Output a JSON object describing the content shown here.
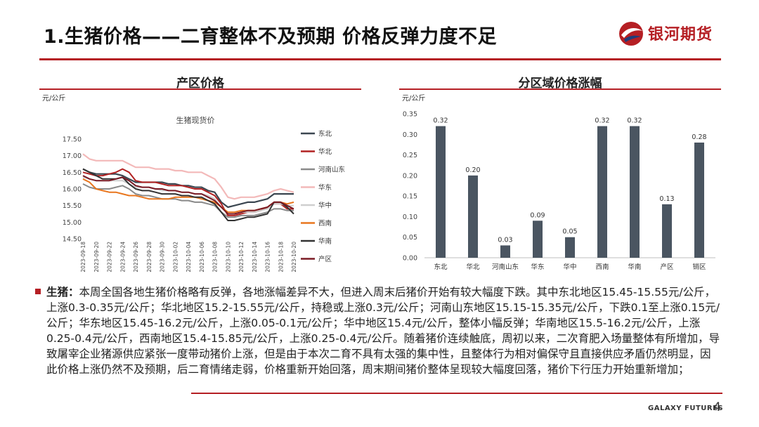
{
  "slide": {
    "title": "1.生猪价格——二育整体不及预期  价格反弹力度不足",
    "logo_text": "银河期货",
    "footer_brand": "GALAXY FUTURES",
    "page_number": "4"
  },
  "left_panel": {
    "panel_title": "产区价格",
    "unit": "元/公斤"
  },
  "right_panel": {
    "panel_title": "分区域价格涨幅",
    "unit": "元/公斤"
  },
  "colors": {
    "accent": "#b51f24",
    "bar": "#4a5561"
  },
  "chart_data": [
    {
      "type": "line",
      "title": "生猪现货价",
      "ylim": [
        14.5,
        17.5
      ],
      "yticks": [
        "17.50",
        "17.00",
        "16.50",
        "16.00",
        "15.50",
        "15.00",
        "14.50"
      ],
      "x": [
        "2023-09-18",
        "2023-09-19",
        "2023-09-20",
        "2023-09-21",
        "2023-09-22",
        "2023-09-23",
        "2023-09-24",
        "2023-09-25",
        "2023-09-26",
        "2023-09-27",
        "2023-09-28",
        "2023-09-29",
        "2023-09-30",
        "2023-10-01",
        "2023-10-02",
        "2023-10-03",
        "2023-10-04",
        "2023-10-05",
        "2023-10-06",
        "2023-10-07",
        "2023-10-08",
        "2023-10-09",
        "2023-10-10",
        "2023-10-11",
        "2023-10-12",
        "2023-10-13",
        "2023-10-14",
        "2023-10-15",
        "2023-10-16",
        "2023-10-17",
        "2023-10-18",
        "2023-10-19",
        "2023-10-20"
      ],
      "xticks": [
        "2023-09-18",
        "2023-09-20",
        "2023-09-22",
        "2023-09-24",
        "2023-09-26",
        "2023-09-28",
        "2023-09-30",
        "2023-10-02",
        "2023-10-04",
        "2023-10-06",
        "2023-10-08",
        "2023-10-10",
        "2023-10-12",
        "2023-10-14",
        "2023-10-16",
        "2023-10-18",
        "2023-10-20"
      ],
      "series": [
        {
          "name": "东北",
          "color": "#3b4650",
          "width": 2.2,
          "values": [
            16.6,
            16.5,
            16.45,
            16.45,
            16.45,
            16.45,
            16.4,
            16.3,
            16.2,
            16.2,
            16.2,
            16.2,
            16.2,
            16.15,
            16.15,
            16.1,
            16.1,
            16.05,
            16.05,
            15.95,
            15.9,
            15.6,
            15.45,
            15.5,
            15.55,
            15.6,
            15.6,
            15.65,
            15.7,
            15.85,
            15.85,
            15.85,
            15.85
          ]
        },
        {
          "name": "华北",
          "color": "#b22222",
          "width": 2,
          "values": [
            16.5,
            16.45,
            16.4,
            16.4,
            16.45,
            16.5,
            16.6,
            16.5,
            16.25,
            16.2,
            16.2,
            16.2,
            16.15,
            16.1,
            16.1,
            16.1,
            16.05,
            16.0,
            16.0,
            15.9,
            15.8,
            15.55,
            15.2,
            15.2,
            15.25,
            15.3,
            15.3,
            15.35,
            15.45,
            15.55,
            15.55,
            15.4,
            15.4
          ]
        },
        {
          "name": "河南山东",
          "color": "#8a8a8a",
          "width": 2,
          "values": [
            16.15,
            16.05,
            16.0,
            16.0,
            16.0,
            16.05,
            16.1,
            16.0,
            15.85,
            15.8,
            15.8,
            15.75,
            15.7,
            15.7,
            15.7,
            15.65,
            15.65,
            15.6,
            15.6,
            15.55,
            15.5,
            15.3,
            15.15,
            15.15,
            15.2,
            15.2,
            15.2,
            15.25,
            15.3,
            15.4,
            15.4,
            15.35,
            15.35
          ]
        },
        {
          "name": "华东",
          "color": "#f3b9b9",
          "width": 2.2,
          "values": [
            17.05,
            16.9,
            16.85,
            16.85,
            16.85,
            16.85,
            16.85,
            16.75,
            16.65,
            16.65,
            16.65,
            16.6,
            16.6,
            16.6,
            16.55,
            16.55,
            16.5,
            16.5,
            16.5,
            16.4,
            16.3,
            16.05,
            15.75,
            15.7,
            15.75,
            15.75,
            15.75,
            15.8,
            15.85,
            15.95,
            16.0,
            15.95,
            15.9
          ]
        },
        {
          "name": "华中",
          "color": "#cfcfcf",
          "width": 2,
          "values": [
            16.35,
            16.3,
            16.25,
            16.25,
            16.25,
            16.25,
            16.25,
            16.15,
            16.05,
            16.05,
            16.05,
            16.0,
            15.95,
            15.95,
            15.95,
            15.9,
            15.9,
            15.85,
            15.85,
            15.8,
            15.7,
            15.45,
            15.25,
            15.25,
            15.3,
            15.3,
            15.3,
            15.35,
            15.4,
            15.55,
            15.55,
            15.5,
            15.5
          ]
        },
        {
          "name": "西南",
          "color": "#e8761e",
          "width": 2,
          "values": [
            16.3,
            16.2,
            16.0,
            15.95,
            15.9,
            15.9,
            15.85,
            15.8,
            15.8,
            15.75,
            15.7,
            15.7,
            15.7,
            15.7,
            15.75,
            15.75,
            15.75,
            15.75,
            15.7,
            15.65,
            15.6,
            15.45,
            15.3,
            15.3,
            15.35,
            15.35,
            15.35,
            15.4,
            15.45,
            15.6,
            15.6,
            15.55,
            15.6
          ]
        },
        {
          "name": "华南",
          "color": "#333333",
          "width": 2,
          "values": [
            16.6,
            16.5,
            16.4,
            16.3,
            16.3,
            16.3,
            16.35,
            16.15,
            16.0,
            15.95,
            15.95,
            15.9,
            15.85,
            15.85,
            15.85,
            15.8,
            15.8,
            15.75,
            15.75,
            15.65,
            15.55,
            15.3,
            15.05,
            15.05,
            15.1,
            15.15,
            15.15,
            15.2,
            15.25,
            15.6,
            15.6,
            15.45,
            15.25
          ]
        },
        {
          "name": "产区",
          "color": "#7a1a24",
          "width": 2,
          "values": [
            16.4,
            16.3,
            16.25,
            16.25,
            16.25,
            16.3,
            16.35,
            16.25,
            16.1,
            16.05,
            16.05,
            16.0,
            16.0,
            15.95,
            15.95,
            15.9,
            15.9,
            15.85,
            15.85,
            15.75,
            15.65,
            15.45,
            15.25,
            15.25,
            15.3,
            15.35,
            15.35,
            15.4,
            15.45,
            15.6,
            15.6,
            15.5,
            15.4
          ]
        }
      ]
    },
    {
      "type": "bar",
      "categories": [
        "东北",
        "华北",
        "河南山东",
        "华东",
        "华中",
        "西南",
        "华南",
        "产区",
        "销区"
      ],
      "values": [
        0.32,
        0.2,
        0.03,
        0.09,
        0.05,
        0.32,
        0.32,
        0.13,
        0.28
      ],
      "data_labels": [
        "0.32",
        "0.20",
        "0.03",
        "0.09",
        "0.05",
        "0.32",
        "0.32",
        "0.13",
        "0.28"
      ],
      "ylim": [
        0,
        0.35
      ],
      "yticks": [
        "0.35",
        "0.30",
        "0.25",
        "0.20",
        "0.15",
        "0.10",
        "0.05",
        "0.00"
      ]
    }
  ],
  "text": {
    "lead": "生猪：",
    "body": "本周全国各地生猪价格略有反弹，各地涨幅差异不大，但进入周末后猪价开始有较大幅度下跌。其中东北地区15.45-15.55元/公斤，上涨0.3-0.35元/公斤；华北地区15.2-15.55元/公斤，持稳或上涨0.3元/公斤；河南山东地区15.15-15.35元/公斤，下跌0.1至上涨0.15元/公斤；华东地区15.45-16.2元/公斤，上涨0.05-0.1元/公斤；华中地区15.4元/公斤，整体小幅反弹；华南地区15.5-16.2元/公斤，上涨0.25-0.4元/公斤，西南地区15.4-15.85元/公斤，上涨0.25-0.4元/公斤。随着猪价连续触底，周初以来，二次育肥入场量整体有所增加，导致屠宰企业猪源供应紧张一度带动猪价上涨，但是由于本次二育不具有太强的集中性，且整体行为相对偏保守且直接供应矛盾仍然明显，因此价格上涨仍然不及预期，后二育情绪走弱，价格重新开始回落，周末期间猪价整体呈现较大幅度回落，猪价下行压力开始重新增加；"
  }
}
